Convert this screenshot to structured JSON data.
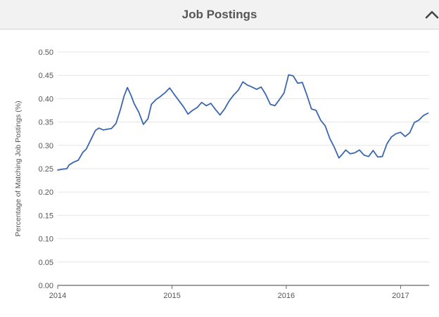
{
  "header": {
    "title": "Job Postings",
    "toggle_icon": "chevron-up-icon"
  },
  "colors": {
    "line": "#3b66b0",
    "grid": "#e6e6e6",
    "axis": "#666666",
    "tick_text": "#555555",
    "header_bg": "#f2f2f2"
  },
  "chart_data": {
    "type": "line",
    "title": "",
    "xlabel": "",
    "ylabel": "Percentage of Matching Job Postings (%)",
    "xlim": [
      2014.0,
      2017.25
    ],
    "ylim": [
      0.0,
      0.5
    ],
    "xticks": [
      2014,
      2015,
      2016,
      2017
    ],
    "xtick_labels": [
      "2014",
      "2015",
      "2016",
      "2017"
    ],
    "yticks": [
      0.0,
      0.05,
      0.1,
      0.15,
      0.2,
      0.25,
      0.3,
      0.35,
      0.4,
      0.45,
      0.5
    ],
    "ytick_labels": [
      "0.00",
      "0.05",
      "0.10",
      "0.15",
      "0.20",
      "0.25",
      "0.30",
      "0.35",
      "0.40",
      "0.45",
      "0.50"
    ],
    "grid": true,
    "legend": "none",
    "series": [
      {
        "x": [
          2014.0,
          2014.04,
          2014.08,
          2014.1,
          2014.14,
          2014.18,
          2014.22,
          2014.25,
          2014.29,
          2014.33,
          2014.36,
          2014.4,
          2014.44,
          2014.47,
          2014.51,
          2014.55,
          2014.58,
          2014.61,
          2014.64,
          2014.67,
          2014.71,
          2014.75,
          2014.79,
          2014.82,
          2014.86,
          2014.9,
          2014.94,
          2014.98,
          2015.02,
          2015.06,
          2015.1,
          2015.14,
          2015.18,
          2015.22,
          2015.26,
          2015.3,
          2015.34,
          2015.38,
          2015.42,
          2015.46,
          2015.5,
          2015.54,
          2015.58,
          2015.62,
          2015.66,
          2015.7,
          2015.74,
          2015.78,
          2015.82,
          2015.86,
          2015.9,
          2015.94,
          2015.98,
          2016.02,
          2016.06,
          2016.1,
          2016.14,
          2016.18,
          2016.22,
          2016.26,
          2016.3,
          2016.34,
          2016.38,
          2016.42,
          2016.46,
          2016.48,
          2016.52,
          2016.56,
          2016.6,
          2016.64,
          2016.68,
          2016.72,
          2016.76,
          2016.8,
          2016.84,
          2016.88,
          2016.92,
          2016.96,
          2017.0,
          2017.04,
          2017.08,
          2017.12,
          2017.16,
          2017.2,
          2017.24
        ],
        "y": [
          0.247,
          0.249,
          0.25,
          0.258,
          0.264,
          0.268,
          0.285,
          0.292,
          0.312,
          0.332,
          0.337,
          0.333,
          0.335,
          0.336,
          0.347,
          0.378,
          0.405,
          0.424,
          0.408,
          0.389,
          0.371,
          0.345,
          0.357,
          0.388,
          0.398,
          0.405,
          0.413,
          0.423,
          0.409,
          0.396,
          0.383,
          0.367,
          0.375,
          0.381,
          0.392,
          0.385,
          0.39,
          0.377,
          0.365,
          0.378,
          0.395,
          0.408,
          0.418,
          0.436,
          0.429,
          0.425,
          0.42,
          0.425,
          0.409,
          0.388,
          0.385,
          0.398,
          0.412,
          0.451,
          0.449,
          0.433,
          0.435,
          0.408,
          0.378,
          0.375,
          0.354,
          0.342,
          0.315,
          0.296,
          0.273,
          0.278,
          0.29,
          0.282,
          0.284,
          0.29,
          0.279,
          0.276,
          0.289,
          0.275,
          0.276,
          0.303,
          0.318,
          0.325,
          0.328,
          0.319,
          0.327,
          0.349,
          0.354,
          0.364,
          0.369
        ]
      }
    ]
  }
}
